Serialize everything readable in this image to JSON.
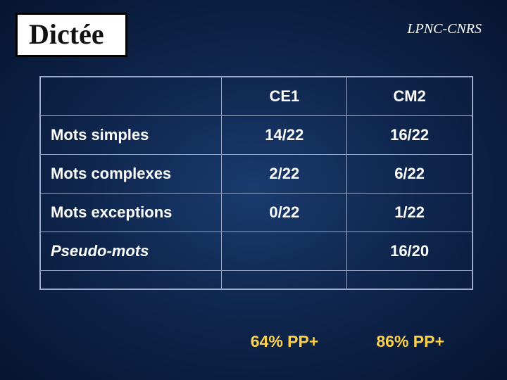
{
  "title": "Dictée",
  "affiliation": "LPNC-CNRS",
  "colors": {
    "background_center": "#1a3a6e",
    "background_edge": "#061530",
    "title_box_bg": "#ffffff",
    "title_box_border": "#000000",
    "table_border": "#9aa9c9",
    "text": "#ffffff",
    "summary_text": "#ffd24a"
  },
  "typography": {
    "title_font": "Times New Roman",
    "title_size_pt": 30,
    "body_font": "Verdana",
    "cell_size_pt": 17,
    "summary_size_pt": 17
  },
  "table": {
    "columns": [
      "",
      "CE1",
      "CM2"
    ],
    "rows": [
      {
        "label": "Mots simples",
        "ce1": "14/22",
        "cm2": "16/22",
        "italic": false
      },
      {
        "label": "Mots complexes",
        "ce1": "2/22",
        "cm2": "6/22",
        "italic": false
      },
      {
        "label": "Mots exceptions",
        "ce1": "0/22",
        "cm2": "1/22",
        "italic": false
      },
      {
        "label": "Pseudo-mots",
        "ce1": "",
        "cm2": "16/20",
        "italic": true
      }
    ]
  },
  "summary": {
    "ce1": "64% PP+",
    "cm2": "86% PP+"
  }
}
